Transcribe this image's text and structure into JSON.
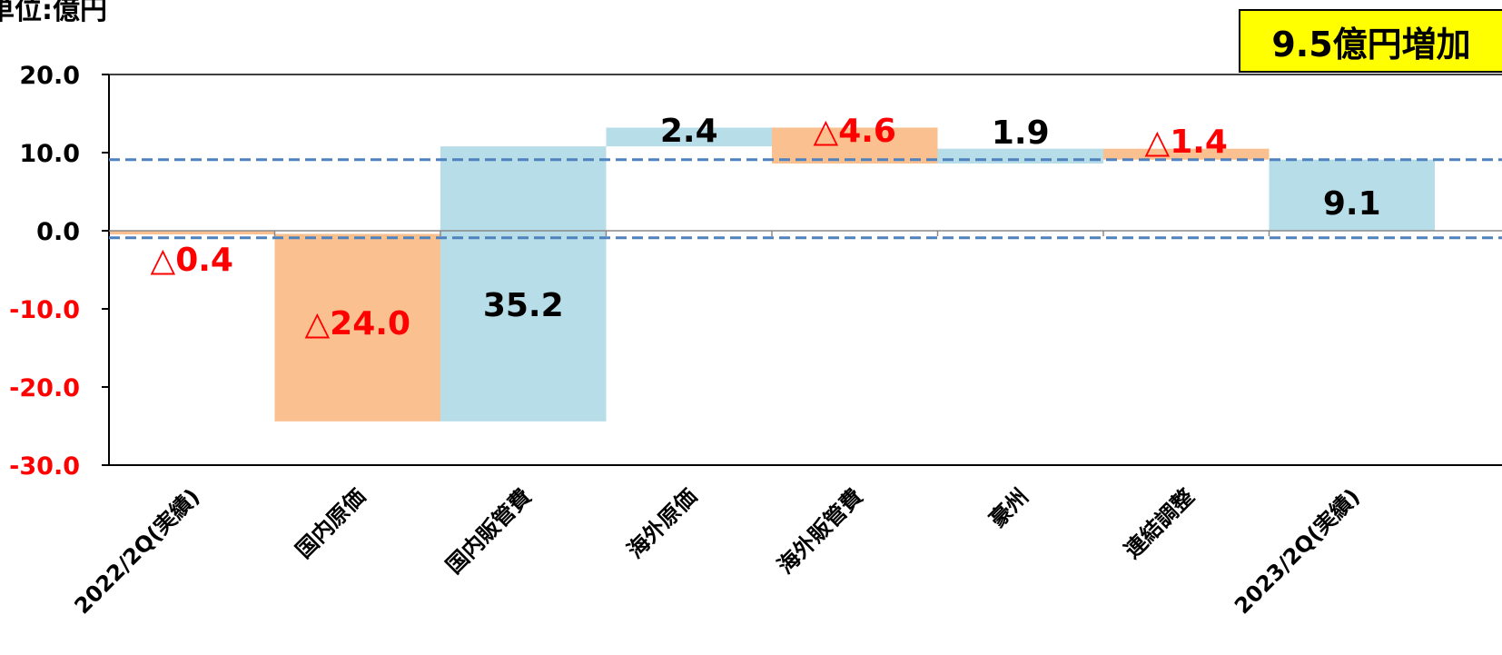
{
  "chart_data": {
    "type": "bar",
    "subtype": "waterfall",
    "title": "",
    "unit_label": "単位:億円",
    "callout": {
      "text": "9.5億円増加",
      "background": "#FFFF00"
    },
    "categories": [
      "2022/2Q(実績)",
      "国内原価",
      "国内販管費",
      "海外原価",
      "海外販管費",
      "豪州",
      "連結調整",
      "2023/2Q(実績)"
    ],
    "bars": [
      {
        "category": "2022/2Q(実績)",
        "start": 0.0,
        "end": -0.4,
        "label": "△0.4",
        "kind": "decrease"
      },
      {
        "category": "国内原価",
        "start": -0.4,
        "end": -24.4,
        "label": "△24.0",
        "kind": "decrease"
      },
      {
        "category": "国内販管費",
        "start": -24.4,
        "end": 10.8,
        "label": "35.2",
        "kind": "increase"
      },
      {
        "category": "海外原価",
        "start": 10.8,
        "end": 13.2,
        "label": "2.4",
        "kind": "increase"
      },
      {
        "category": "海外販管費",
        "start": 13.2,
        "end": 8.6,
        "label": "△4.6",
        "kind": "decrease"
      },
      {
        "category": "豪州",
        "start": 8.6,
        "end": 10.5,
        "label": "1.9",
        "kind": "increase"
      },
      {
        "category": "連結調整",
        "start": 10.5,
        "end": 9.1,
        "label": "△1.4",
        "kind": "decrease"
      },
      {
        "category": "2023/2Q(実績)",
        "start": 0.0,
        "end": 9.1,
        "label": "9.1",
        "kind": "increase"
      }
    ],
    "reference_lines": [
      9.1,
      -0.9
    ],
    "ylim": [
      -30,
      20
    ],
    "yticks": [
      {
        "value": 20,
        "label": "20.0"
      },
      {
        "value": 10,
        "label": "10.0"
      },
      {
        "value": 0,
        "label": "0.0"
      },
      {
        "value": -10,
        "label": "-10.0"
      },
      {
        "value": -20,
        "label": "-20.0"
      },
      {
        "value": -30,
        "label": "-30.0"
      }
    ],
    "grid": false,
    "colors": {
      "increase": "#B7DDE8",
      "decrease": "#FAC090",
      "positive_label": "#000000",
      "negative_label": "#FF0000",
      "reference_line": "#4F81BD",
      "axis": "#000000"
    }
  }
}
